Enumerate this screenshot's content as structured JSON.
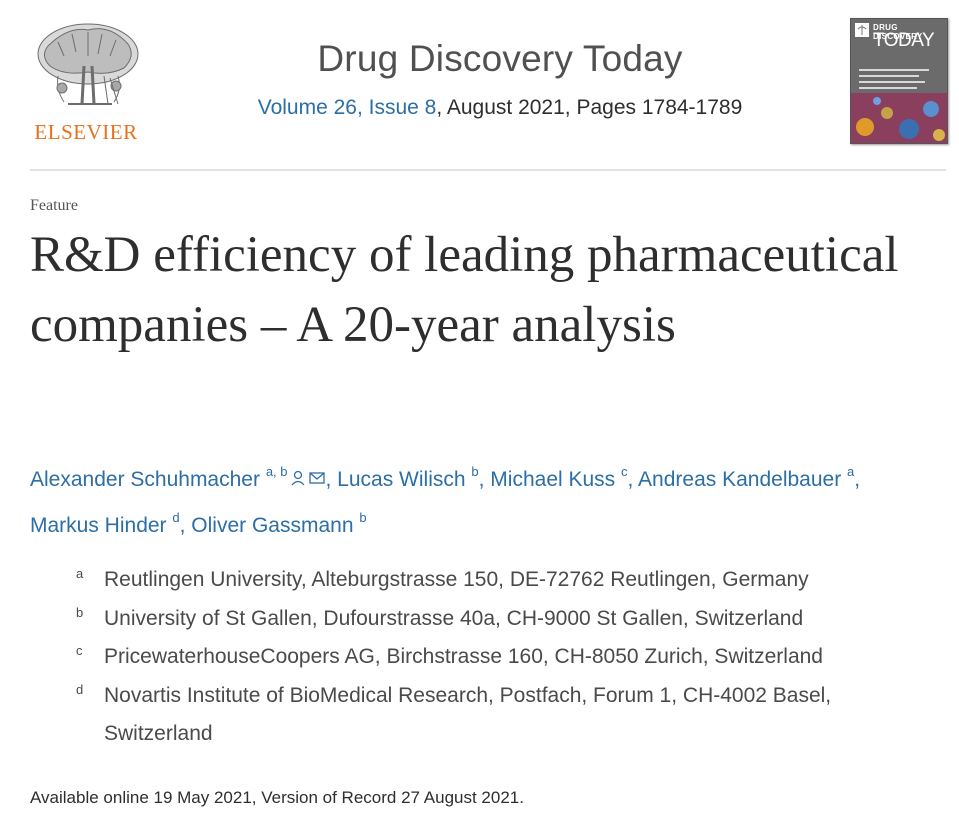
{
  "publisher": {
    "logo_text": "ELSEVIER"
  },
  "journal": {
    "name": "Drug Discovery Today",
    "volume_issue": "Volume 26, Issue 8",
    "date_pages": ", August 2021, Pages 1784-1789",
    "cover_title_line1": "DRUG DISCOVERY",
    "cover_title_line2": "TODAY"
  },
  "article": {
    "type": "Feature",
    "title": "R&D efficiency of leading pharmaceutical companies – A 20-year analysis",
    "authors": [
      {
        "name": "Alexander Schuhmacher",
        "affil": "a, b",
        "sep": ", "
      },
      {
        "name": "Lucas Wilisch",
        "affil": "b",
        "sep": ", "
      },
      {
        "name": "Michael Kuss",
        "affil": "c",
        "sep": ", "
      },
      {
        "name": "Andreas Kandelbauer",
        "affil": "a",
        "sep": ","
      },
      {
        "name": "Markus Hinder",
        "affil": "d",
        "sep": ", "
      },
      {
        "name": "Oliver Gassmann",
        "affil": "b",
        "sep": ""
      }
    ],
    "affiliations": [
      {
        "label": "a",
        "text": "Reutlingen University, Alteburgstrasse 150, DE-72762 Reutlingen, Germany"
      },
      {
        "label": "b",
        "text": "University of St Gallen, Dufourstrasse 40a, CH-9000 St Gallen, Switzerland"
      },
      {
        "label": "c",
        "text": "PricewaterhouseCoopers AG, Birchstrasse 160, CH-8050 Zurich, Switzerland"
      },
      {
        "label": "d",
        "text": "Novartis Institute of BioMedical Research, Postfach, Forum 1, CH-4002 Basel, Switzerland"
      }
    ],
    "availability": "Available online 19 May 2021, Version of Record 27 August 2021."
  },
  "colors": {
    "link": "#2c6ea6",
    "elsevier_orange": "#e9711c",
    "text": "#2e2e2e"
  }
}
